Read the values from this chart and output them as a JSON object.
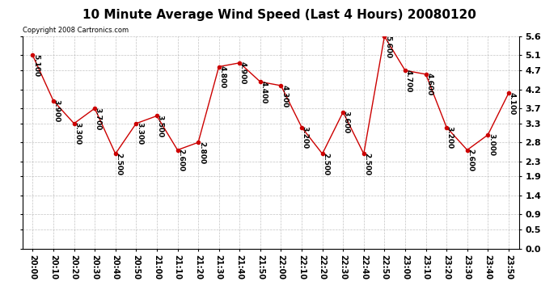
{
  "title": "10 Minute Average Wind Speed (Last 4 Hours) 20080120",
  "copyright": "Copyright 2008 Cartronics.com",
  "x_labels": [
    "20:00",
    "20:10",
    "20:20",
    "20:30",
    "20:40",
    "20:50",
    "21:00",
    "21:10",
    "21:20",
    "21:30",
    "21:40",
    "21:50",
    "22:00",
    "22:10",
    "22:20",
    "22:30",
    "22:40",
    "22:50",
    "23:00",
    "23:10",
    "23:20",
    "23:30",
    "23:40",
    "23:50"
  ],
  "y_values": [
    5.1,
    3.9,
    3.3,
    3.7,
    2.5,
    3.3,
    3.5,
    2.6,
    2.8,
    4.8,
    4.9,
    4.4,
    4.3,
    3.2,
    2.5,
    3.6,
    2.5,
    5.6,
    4.7,
    4.6,
    3.2,
    2.6,
    3.0,
    4.1
  ],
  "y_labels": [
    0.0,
    0.5,
    0.9,
    1.4,
    1.9,
    2.3,
    2.8,
    3.3,
    3.7,
    4.2,
    4.7,
    5.1,
    5.6
  ],
  "ylim": [
    0.0,
    5.6
  ],
  "line_color": "#cc0000",
  "marker_color": "#cc0000",
  "bg_color": "#ffffff",
  "grid_color": "#aaaaaa",
  "title_fontsize": 11,
  "tick_fontsize": 7,
  "annotation_fontsize": 6.5,
  "copyright_fontsize": 6
}
